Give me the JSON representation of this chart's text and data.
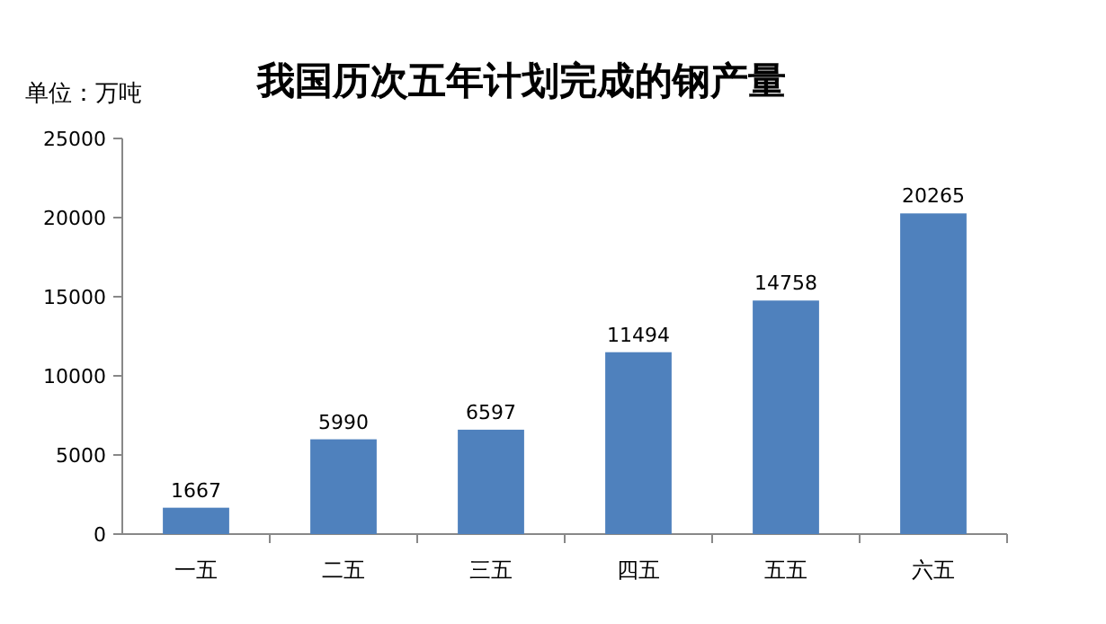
{
  "chart_data": {
    "type": "bar",
    "title": "我国历次五年计划完成的钢产量",
    "ylabel": "单位：万吨",
    "categories": [
      "一五",
      "二五",
      "三五",
      "四五",
      "五五",
      "六五"
    ],
    "values": [
      1667,
      5990,
      6597,
      11494,
      14758,
      20265
    ],
    "color": "#4f81bd",
    "ylim": [
      0,
      25000
    ],
    "yticks": [
      0,
      5000,
      10000,
      15000,
      20000,
      25000
    ],
    "grid": false,
    "data_labels": true
  }
}
